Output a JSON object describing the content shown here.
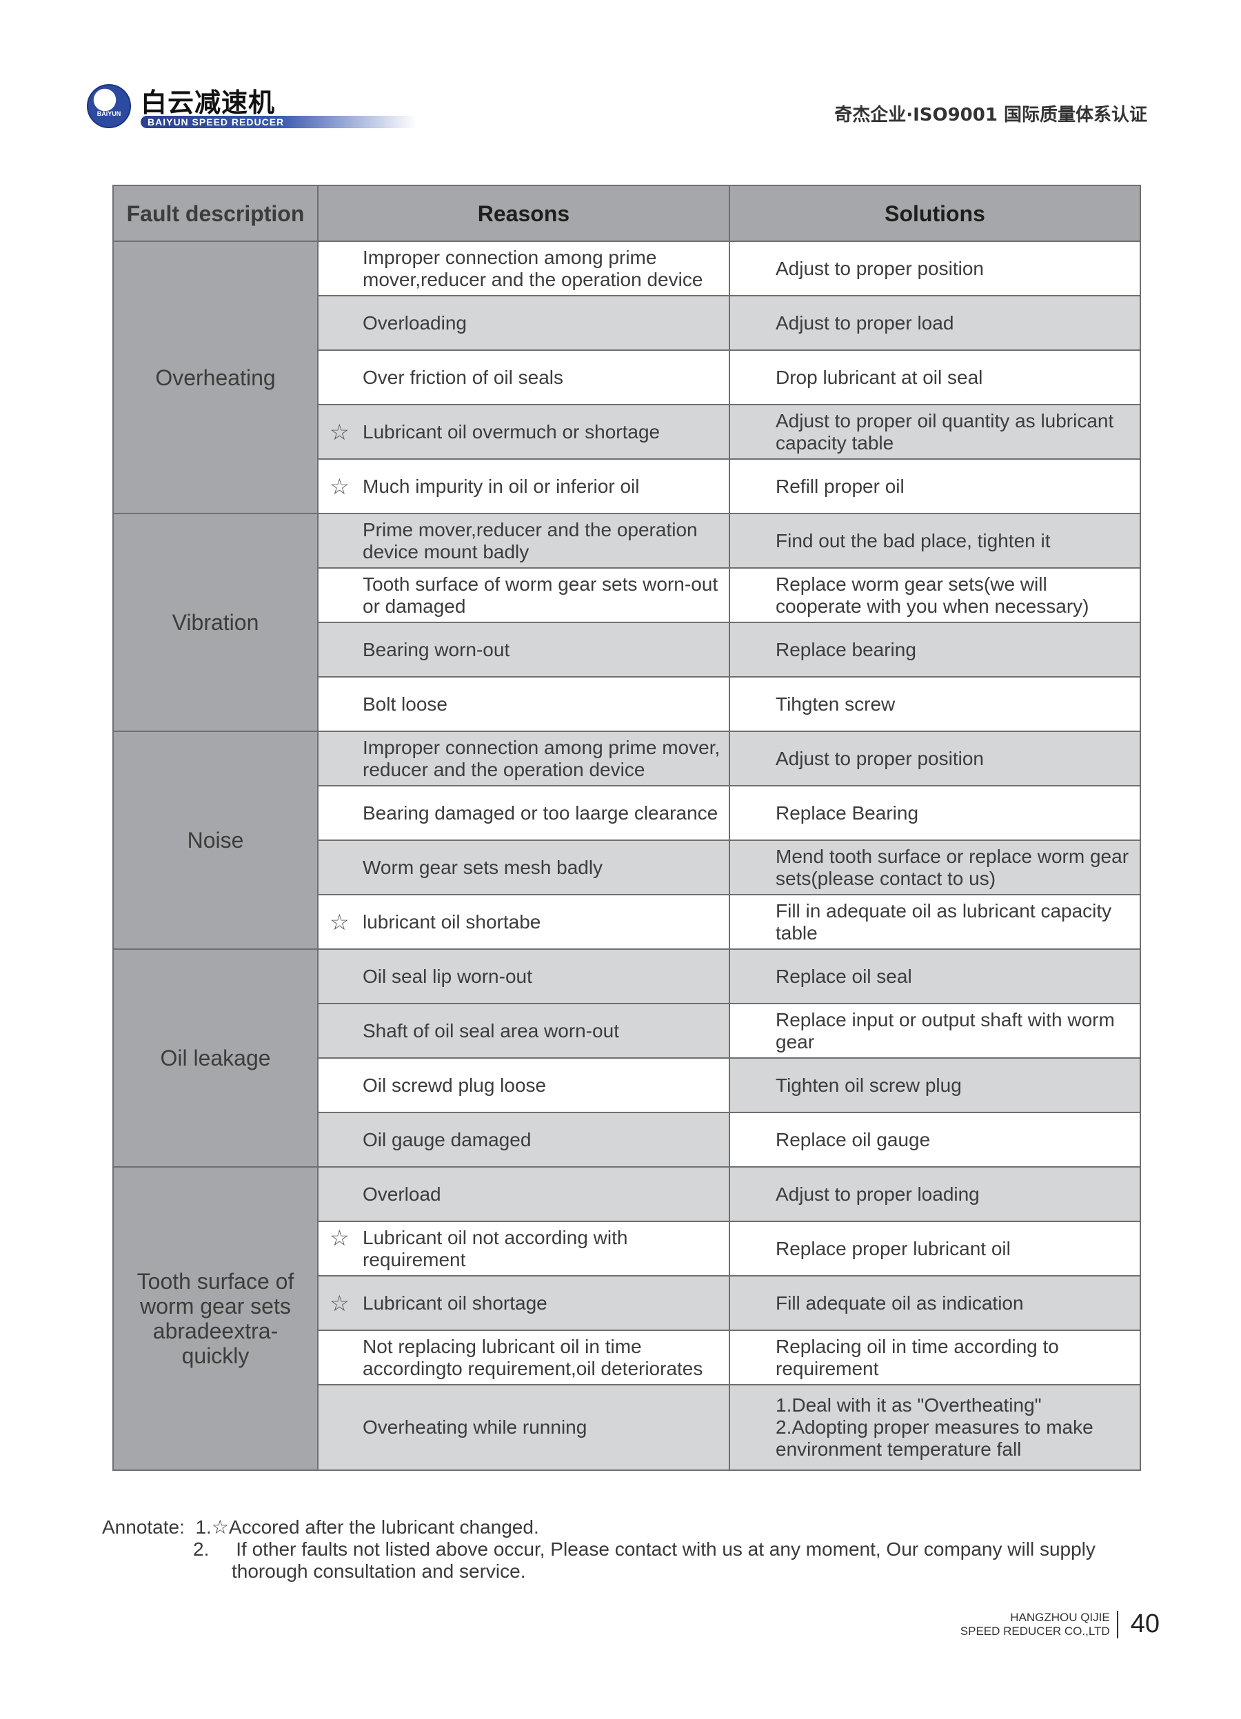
{
  "header": {
    "logo_cn": "白云减速机",
    "logo_en": "BAIYUN SPEED REDUCER",
    "logo_badge": "BAIYUN",
    "cert": "奇杰企业·ISO9001 国际质量体系认证"
  },
  "table": {
    "headers": [
      "Fault description",
      "Reasons",
      "Solutions"
    ],
    "groups": [
      {
        "fault": "Overheating",
        "rows": [
          {
            "reason": "Improper connection among prime mover,reducer and the operation device",
            "solution": "Adjust to proper position",
            "star": false
          },
          {
            "reason": "Overloading",
            "solution": "Adjust to proper load",
            "star": false
          },
          {
            "reason": "Over friction of oil seals",
            "solution": "Drop lubricant at oil seal",
            "star": false
          },
          {
            "reason": "Lubricant oil overmuch or shortage",
            "solution": "Adjust to proper oil quantity as lubricant capacity table",
            "star": true
          },
          {
            "reason": "Much impurity in oil or inferior oil",
            "solution": "Refill proper oil",
            "star": true
          }
        ]
      },
      {
        "fault": "Vibration",
        "rows": [
          {
            "reason": "Prime mover,reducer and the operation device mount badly",
            "solution": "Find out the bad place, tighten it",
            "star": false
          },
          {
            "reason": "Tooth surface of worm gear sets worn-out or damaged",
            "solution": "Replace worm gear sets(we will cooperate with you when necessary)",
            "star": false
          },
          {
            "reason": "Bearing worn-out",
            "solution": "Replace bearing",
            "star": false
          },
          {
            "reason": "Bolt loose",
            "solution": "Tihgten screw",
            "star": false
          }
        ]
      },
      {
        "fault": "Noise",
        "rows": [
          {
            "reason": "Improper connection among prime mover, reducer and the operation device",
            "solution": "Adjust to proper position",
            "star": false
          },
          {
            "reason": "Bearing damaged or too laarge clearance",
            "solution": "Replace Bearing",
            "star": false
          },
          {
            "reason": "Worm gear sets mesh badly",
            "solution": "Mend tooth surface or replace worm gear sets(please contact to us)",
            "star": false
          },
          {
            "reason": "lubricant oil shortabe",
            "solution": "Fill in adequate oil as lubricant capacity table",
            "star": true
          }
        ]
      },
      {
        "fault": "Oil leakage",
        "rows": [
          {
            "reason": "Oil seal lip worn-out",
            "solution": "Replace oil seal",
            "star": false
          },
          {
            "reason": "Shaft of oil seal area worn-out",
            "solution": "Replace input or output shaft with worm gear",
            "star": false
          },
          {
            "reason": "Oil screwd plug loose",
            "solution": "Tighten oil screw plug",
            "star": false
          },
          {
            "reason": "Oil gauge damaged",
            "solution": "Replace oil gauge",
            "star": false
          }
        ]
      },
      {
        "fault": "Tooth surface of worm gear sets abradeextra-quickly",
        "rows": [
          {
            "reason": "Overload",
            "solution": "Adjust to proper loading",
            "star": false
          },
          {
            "reason": "Lubricant oil not according with requirement",
            "solution": "Replace proper lubricant oil",
            "star": true
          },
          {
            "reason": "Lubricant oil shortage",
            "solution": "Fill adequate oil as indication",
            "star": true
          },
          {
            "reason": "Not replacing lubricant oil in time accordingto requirement,oil deteriorates",
            "solution": "Replacing oil in time according to requirement",
            "star": false
          },
          {
            "reason": "Overheating while running",
            "solution": "1.Deal with it as \"Overtheating\"\n2.Adopting proper measures to make environment temperature fall",
            "star": false
          }
        ]
      }
    ],
    "star_icon": "star-outline-icon"
  },
  "annotate": {
    "label": "Annotate:",
    "note1": "1.☆Accored after the lubricant changed.",
    "note2_num": "2.",
    "note2": "If other faults not listed above  occur, Please contact with us at any moment, Our company will supply",
    "note2_cont": "thorough consultation and service."
  },
  "footer": {
    "company_line1": "HANGZHOU QIJIE",
    "company_line2": "SPEED REDUCER CO.,LTD",
    "page": "40"
  }
}
